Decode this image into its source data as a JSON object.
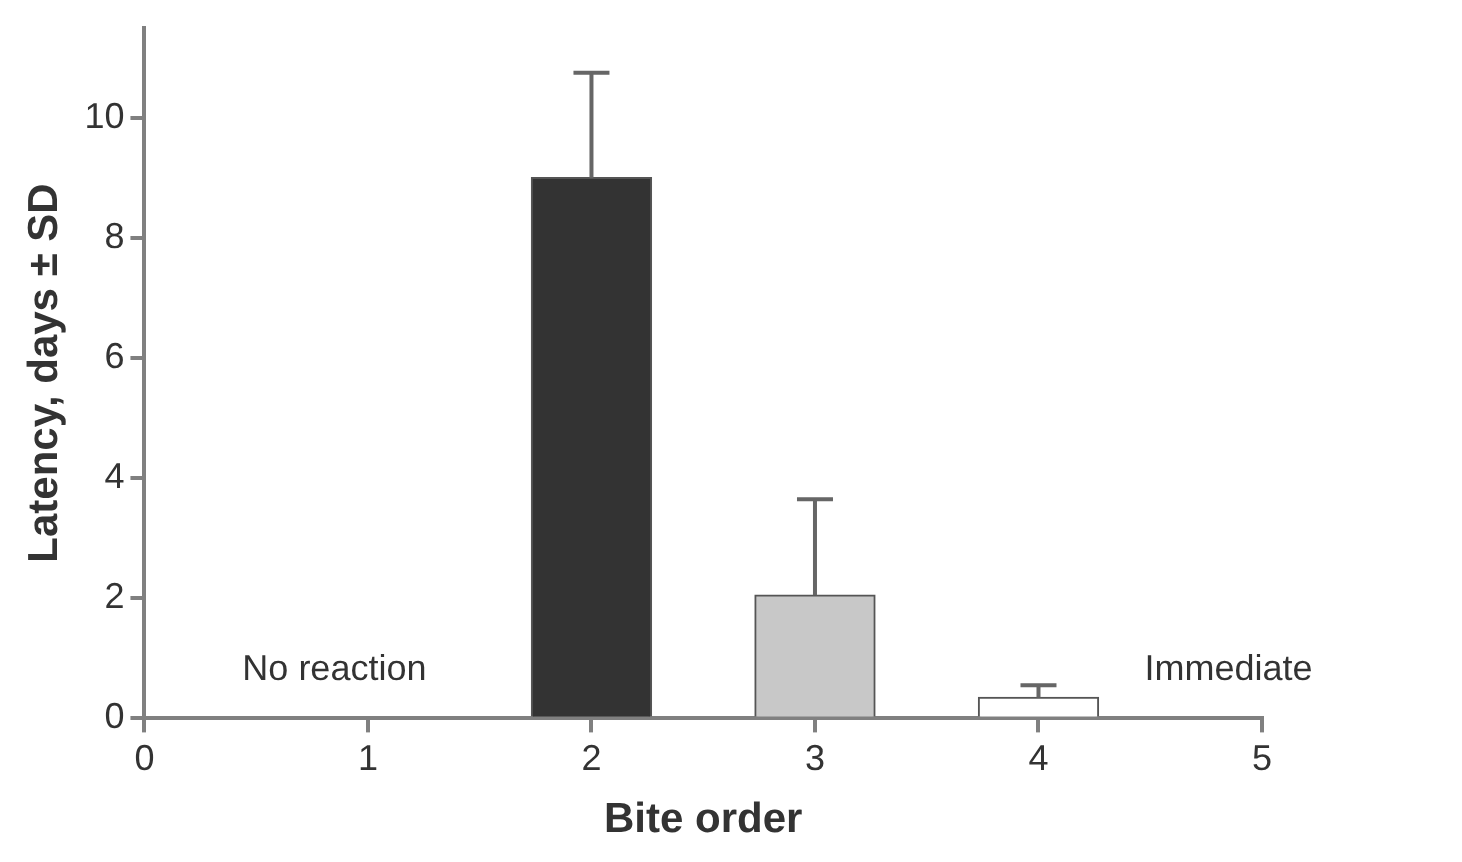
{
  "chart_data": {
    "type": "bar",
    "xlabel": "Bite order",
    "ylabel": "Latency, days ± SD",
    "categories": [
      "0",
      "1",
      "2",
      "3",
      "4",
      "5"
    ],
    "values": [
      null,
      null,
      9,
      2.05,
      0.35,
      null
    ],
    "errors": [
      null,
      null,
      1.75,
      1.6,
      0.2,
      null
    ],
    "colors": [
      "#333333",
      "#333333",
      "#333333",
      "#c8c8c8",
      "#ffffff",
      "#333333"
    ],
    "ylim": [
      0,
      11.5
    ],
    "yticks": [
      0,
      2,
      4,
      6,
      8,
      10
    ],
    "annotations": [
      "No reaction",
      "Immediate"
    ],
    "legend": false
  }
}
